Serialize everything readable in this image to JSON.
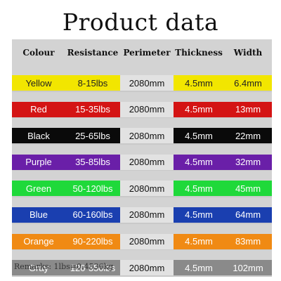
{
  "title": "Product data",
  "headers": [
    "Colour",
    "Resistance",
    "Perimeter",
    "Thickness",
    "Width"
  ],
  "rows": [
    {
      "colour": "Yellow",
      "resistance": "8-15lbs",
      "perimeter": "2080mm",
      "thickness": "4.5mm",
      "width": "6.4mm",
      "color_hex": "#f2e600",
      "text_color": "#222222"
    },
    {
      "colour": "Red",
      "resistance": "15-35lbs",
      "perimeter": "2080mm",
      "thickness": "4.5mm",
      "width": "13mm",
      "color_hex": "#d41414",
      "text_color": "#ffffff"
    },
    {
      "colour": "Black",
      "resistance": "25-65lbs",
      "perimeter": "2080mm",
      "thickness": "4.5mm",
      "width": "22mm",
      "color_hex": "#0a0a0a",
      "text_color": "#ffffff"
    },
    {
      "colour": "Purple",
      "resistance": "35-85lbs",
      "perimeter": "2080mm",
      "thickness": "4.5mm",
      "width": "32mm",
      "color_hex": "#6a1fa8",
      "text_color": "#ffffff"
    },
    {
      "colour": "Green",
      "resistance": "50-120lbs",
      "perimeter": "2080mm",
      "thickness": "4.5mm",
      "width": "45mm",
      "color_hex": "#1fd93a",
      "text_color": "#ffffff"
    },
    {
      "colour": "Blue",
      "resistance": "60-160lbs",
      "perimeter": "2080mm",
      "thickness": "4.5mm",
      "width": "64mm",
      "color_hex": "#1a3fb0",
      "text_color": "#ffffff"
    },
    {
      "colour": "Orange",
      "resistance": "90-220lbs",
      "perimeter": "2080mm",
      "thickness": "4.5mm",
      "width": "83mm",
      "color_hex": "#f08a14",
      "text_color": "#ffffff"
    },
    {
      "colour": "Gray",
      "resistance": "120-350lbs",
      "perimeter": "2080mm",
      "thickness": "4.5mm",
      "width": "102mm",
      "color_hex": "#8a8a8a",
      "text_color": "#ffffff"
    }
  ],
  "remarks": "Remarks: 1lbs=0.4536kg"
}
